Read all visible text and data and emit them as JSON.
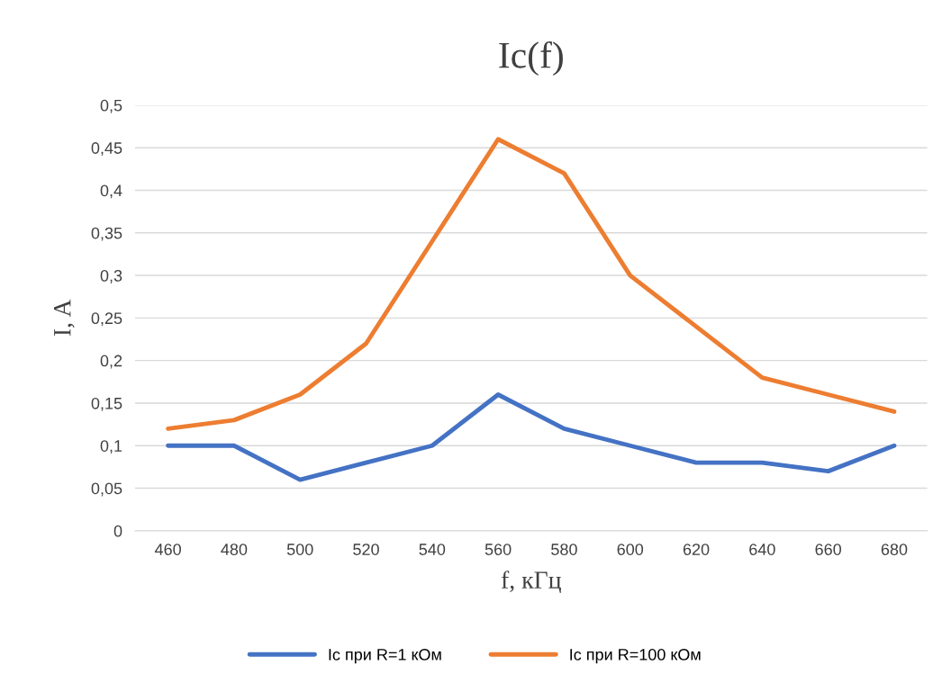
{
  "chart_data": {
    "type": "line",
    "title": "Ic(f)",
    "xlabel": "f, кГц",
    "ylabel": "I, A",
    "categories": [
      "460",
      "480",
      "500",
      "520",
      "540",
      "560",
      "580",
      "600",
      "620",
      "640",
      "660",
      "680"
    ],
    "series": [
      {
        "name": "Ic при R=1 кОм",
        "color": "#4472c4",
        "values": [
          0.1,
          0.1,
          0.06,
          0.08,
          0.1,
          0.16,
          0.12,
          0.1,
          0.08,
          0.08,
          0.07,
          0.1
        ]
      },
      {
        "name": "Ic при R=100 кОм",
        "color": "#ed7d31",
        "values": [
          0.12,
          0.13,
          0.16,
          0.22,
          0.34,
          0.46,
          0.42,
          0.3,
          0.24,
          0.18,
          0.16,
          0.14
        ]
      }
    ],
    "ylim": [
      0,
      0.5
    ],
    "yticks": [
      {
        "value": 0,
        "label": "0"
      },
      {
        "value": 0.05,
        "label": "0,05"
      },
      {
        "value": 0.1,
        "label": "0,1"
      },
      {
        "value": 0.15,
        "label": "0,15"
      },
      {
        "value": 0.2,
        "label": "0,2"
      },
      {
        "value": 0.25,
        "label": "0,25"
      },
      {
        "value": 0.3,
        "label": "0,3"
      },
      {
        "value": 0.35,
        "label": "0,35"
      },
      {
        "value": 0.4,
        "label": "0,4"
      },
      {
        "value": 0.45,
        "label": "0,45"
      },
      {
        "value": 0.5,
        "label": "0,5"
      }
    ],
    "grid": "y",
    "legend": "bottom",
    "marker": "none",
    "line_style": "solid"
  }
}
